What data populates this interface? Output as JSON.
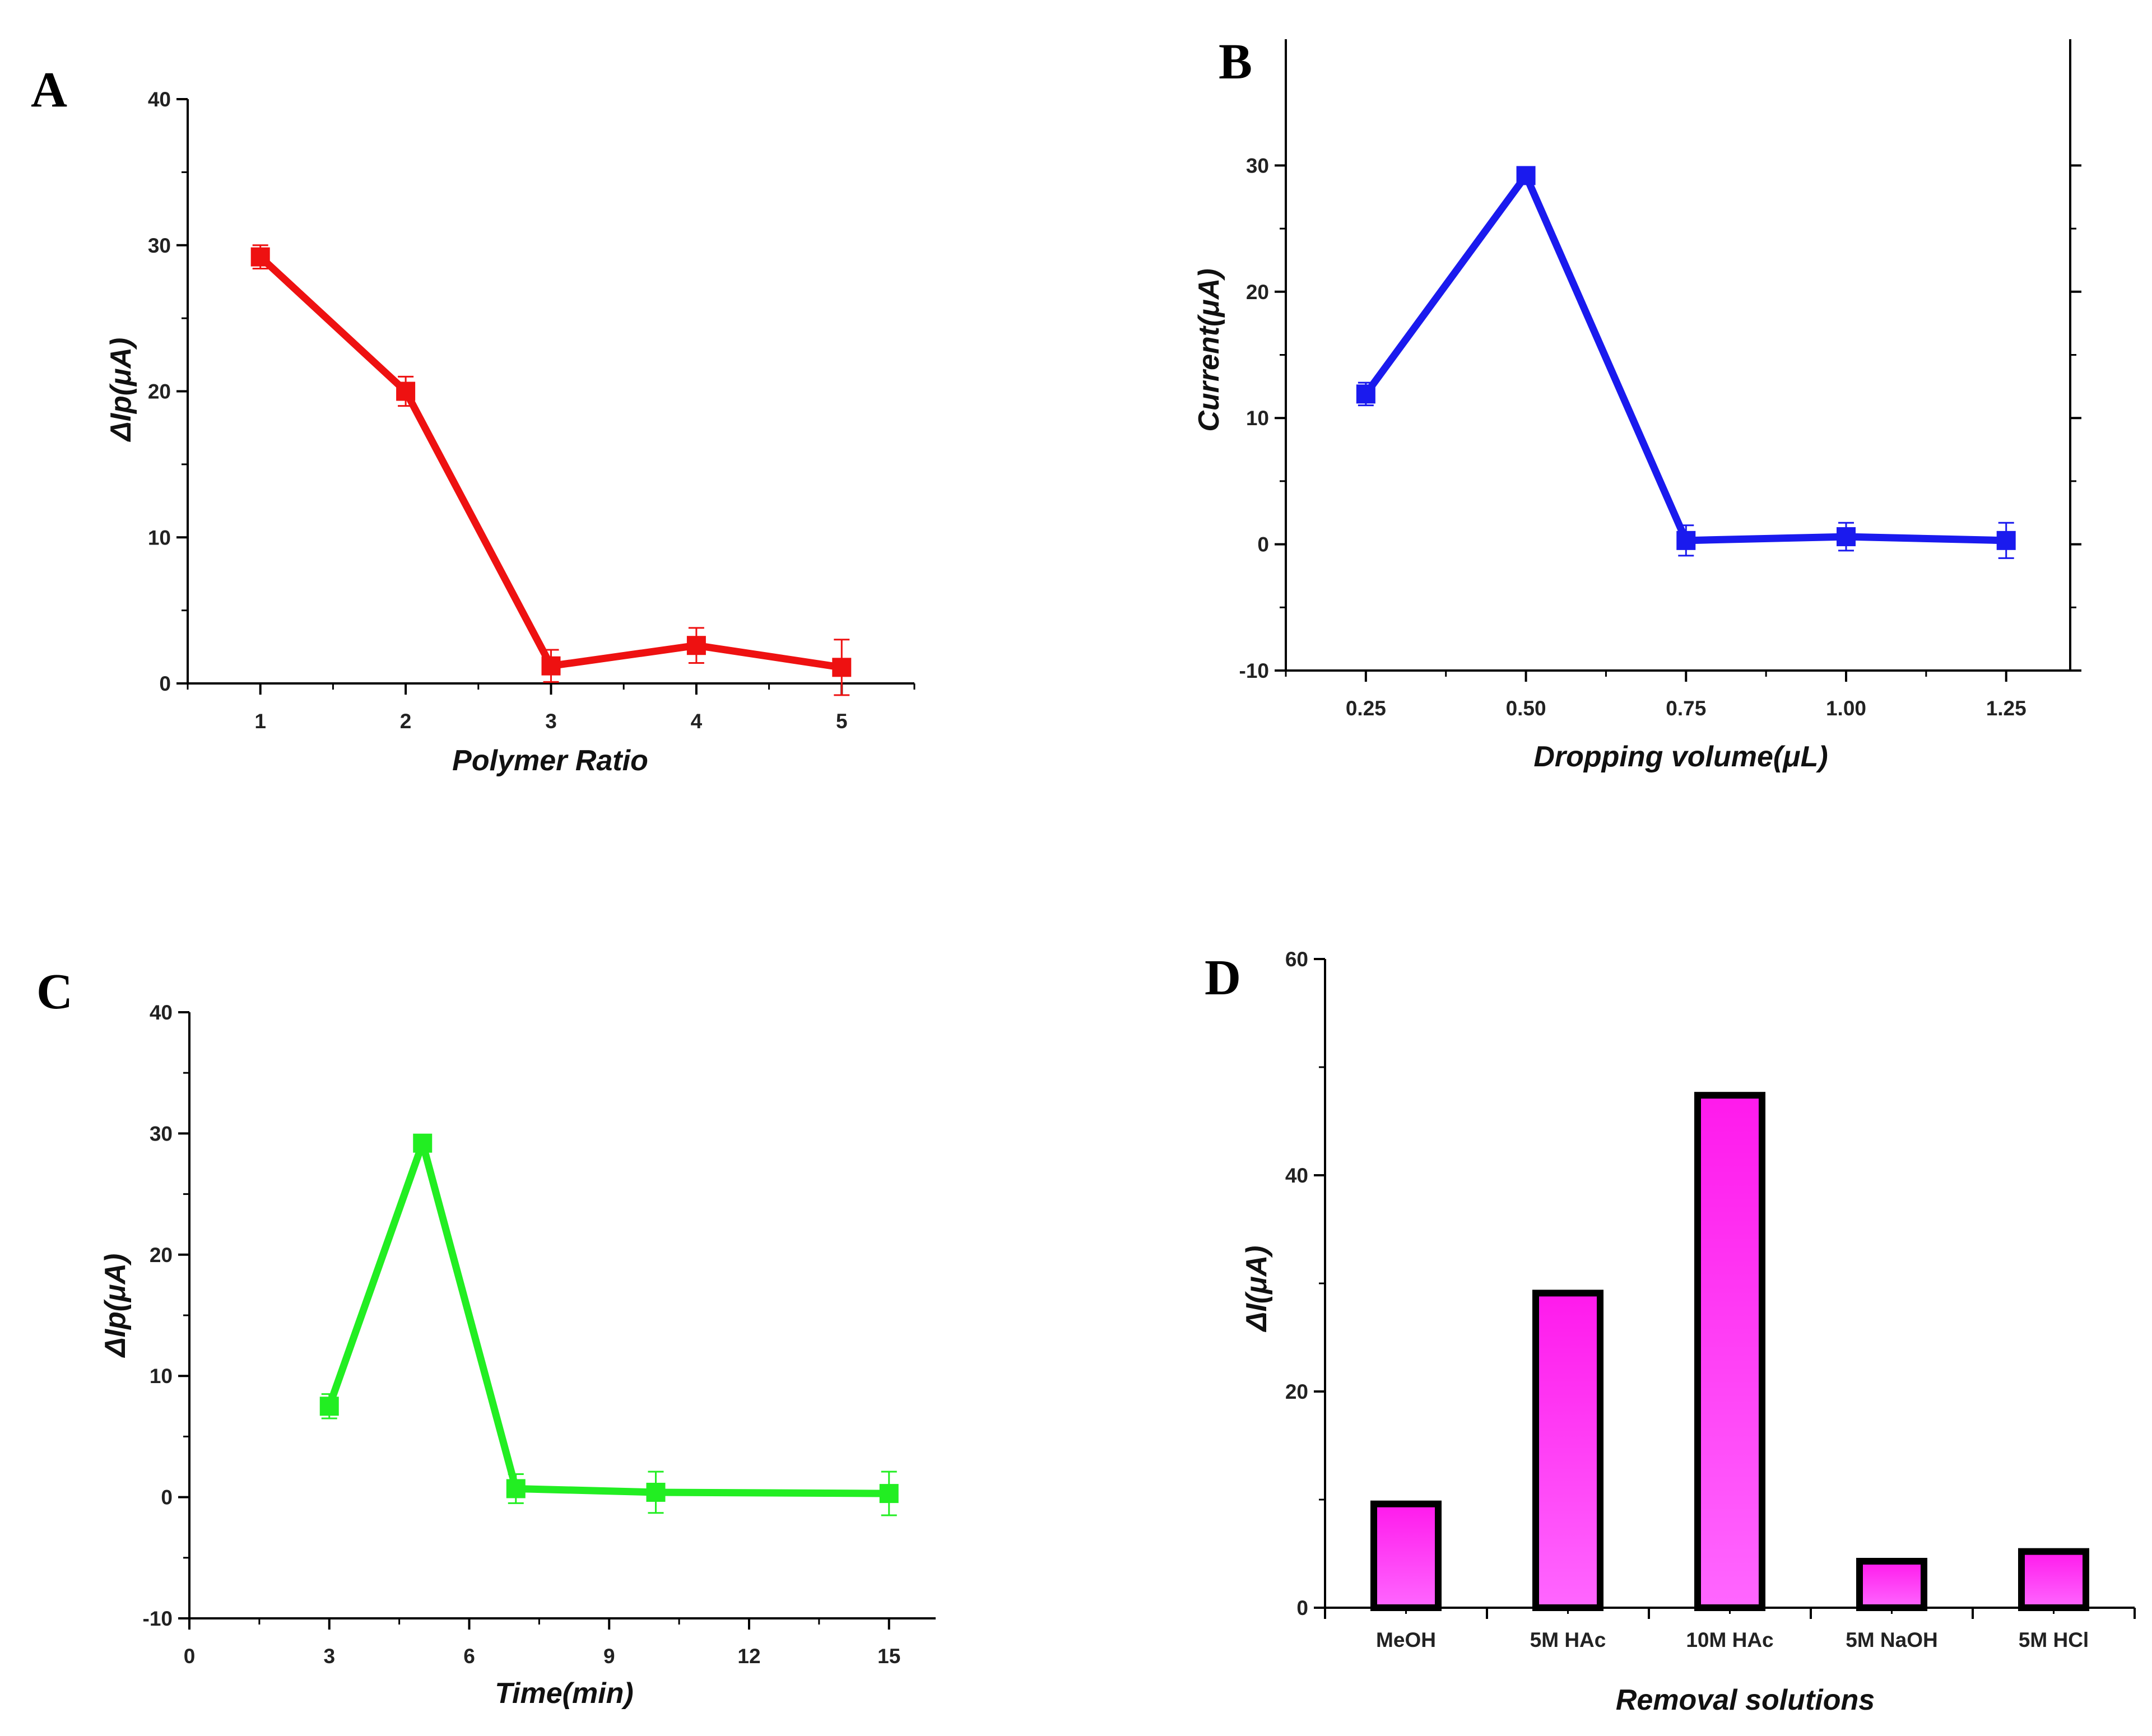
{
  "chart_data": [
    {
      "panel": "A",
      "type": "line",
      "xlabel": "Polymer Ratio",
      "ylabel": "ΔIp(μA)",
      "xlim": [
        0.5,
        5.5
      ],
      "ylim": [
        0,
        40
      ],
      "xticks": [
        1,
        2,
        3,
        4,
        5
      ],
      "yticks": [
        0,
        10,
        20,
        30,
        40
      ],
      "color": "#ee1111",
      "x": [
        1,
        2,
        3,
        4,
        5
      ],
      "y": [
        29.2,
        20.0,
        1.2,
        2.6,
        1.1
      ],
      "err": [
        0.8,
        1.0,
        1.1,
        1.2,
        1.9
      ]
    },
    {
      "panel": "B",
      "type": "line",
      "xlabel": "Dropping volume(μL)",
      "ylabel": "Current(μA)",
      "xlim": [
        0.125,
        1.35
      ],
      "ylim": [
        -10,
        40
      ],
      "xticks": [
        "0.25",
        "0.50",
        "0.75",
        "1.00",
        "1.25"
      ],
      "yticks": [
        -10,
        0,
        10,
        20,
        30
      ],
      "color": "#1a1aee",
      "x": [
        0.25,
        0.5,
        0.75,
        1.0,
        1.25
      ],
      "y": [
        11.9,
        29.2,
        0.3,
        0.6,
        0.3
      ],
      "err": [
        0.9,
        0.6,
        1.2,
        1.1,
        1.4
      ]
    },
    {
      "panel": "C",
      "type": "line",
      "xlabel": "Time(min)",
      "ylabel": "ΔIp(μA)",
      "xlim": [
        0,
        16
      ],
      "ylim": [
        -10,
        40
      ],
      "xticks": [
        0,
        3,
        6,
        9,
        12,
        15
      ],
      "yticks": [
        -10,
        0,
        10,
        20,
        30,
        40
      ],
      "color": "#22ee22",
      "x": [
        3,
        5,
        7,
        10,
        15
      ],
      "y": [
        7.5,
        29.2,
        0.7,
        0.4,
        0.3
      ],
      "err": [
        1.0,
        0.6,
        1.2,
        1.7,
        1.8
      ]
    },
    {
      "panel": "D",
      "type": "bar",
      "xlabel": "Removal solutions",
      "ylabel": "ΔI(μA)",
      "ylim": [
        0,
        60
      ],
      "yticks": [
        0,
        20,
        40,
        60
      ],
      "color": "#ff33ee",
      "categories": [
        "MeOH",
        "5M HAc",
        "10M HAc",
        "5M NaOH",
        "5M HCl"
      ],
      "values": [
        9.6,
        29.1,
        47.4,
        4.3,
        5.2
      ]
    }
  ]
}
